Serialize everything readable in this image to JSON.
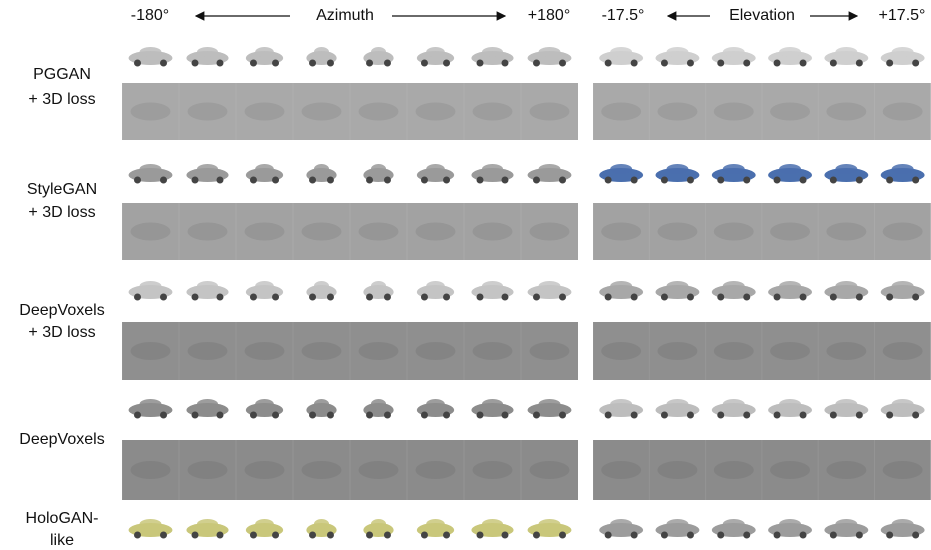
{
  "header": {
    "azimuth": {
      "start": "-180°",
      "label": "Azimuth",
      "end": "+180°"
    },
    "elevation": {
      "start": "-17.5°",
      "label": "Elevation",
      "end": "+17.5°"
    }
  },
  "rows": [
    {
      "label_lines": [
        "PGGAN",
        "+ 3D loss"
      ]
    },
    {
      "label_lines": [
        "StyleGAN",
        "+ 3D loss"
      ]
    },
    {
      "label_lines": [
        "DeepVoxels",
        "+ 3D loss"
      ]
    },
    {
      "label_lines": [
        "DeepVoxels"
      ]
    },
    {
      "label_lines": [
        "HoloGAN-",
        "like"
      ]
    }
  ]
}
